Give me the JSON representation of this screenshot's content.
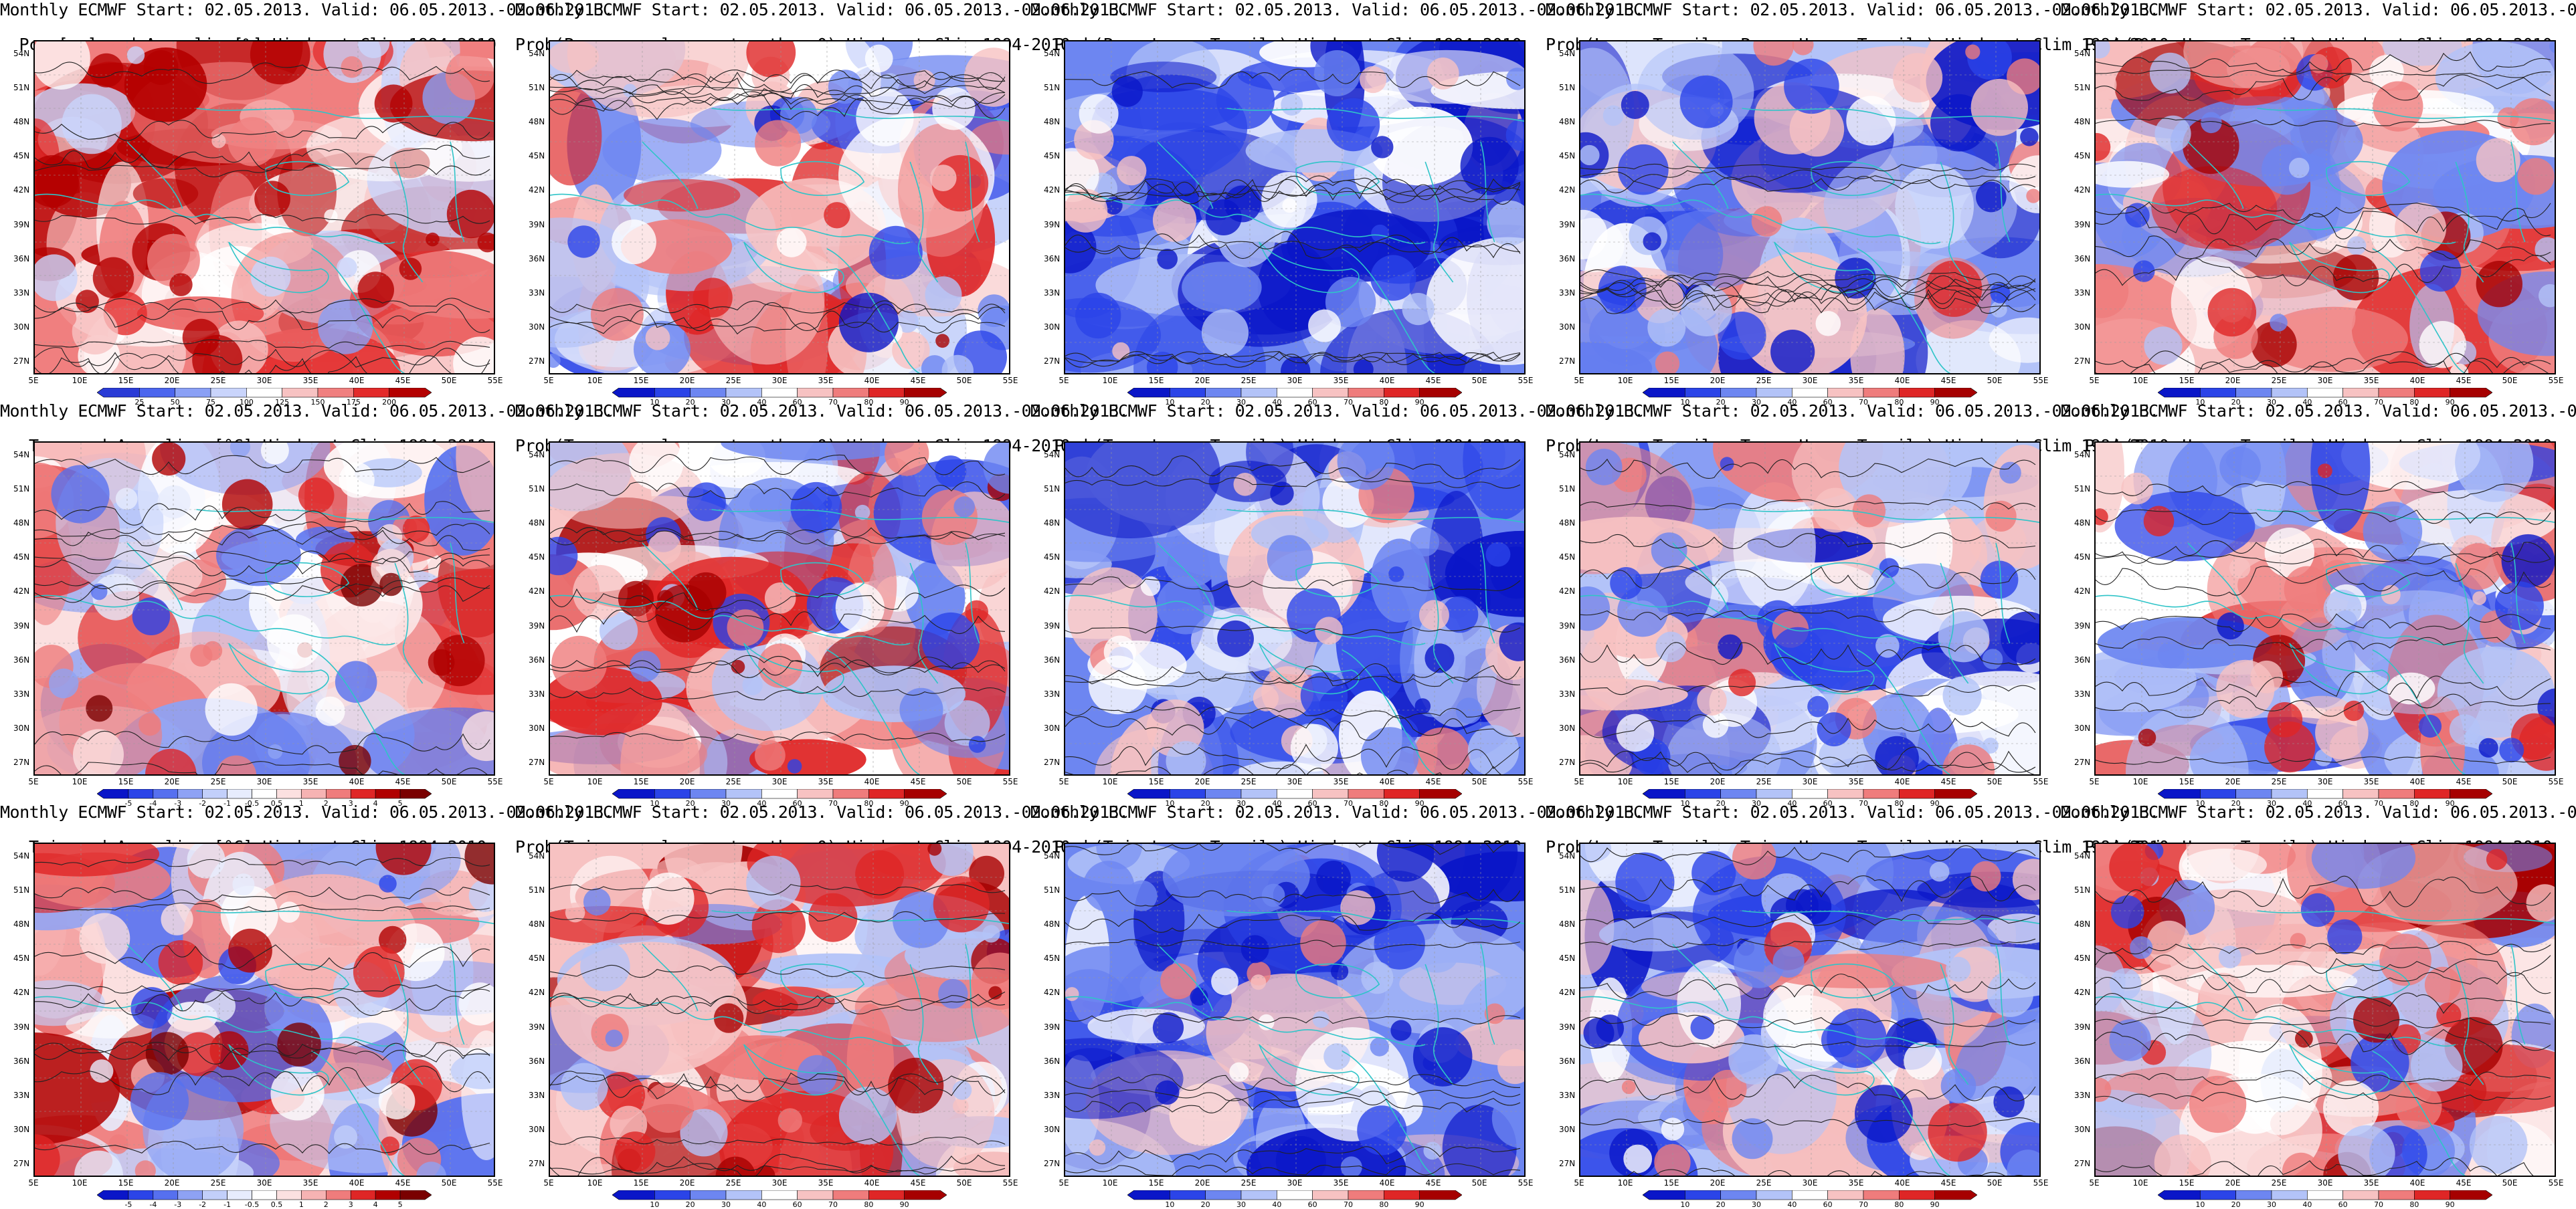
{
  "page": {
    "header_line": "Monthly ECMWF Start: 02.05.2013. Valid: 06.05.2013.-02.06.2013."
  },
  "axes": {
    "lat_labels": [
      "54N",
      "51N",
      "48N",
      "45N",
      "42N",
      "39N",
      "36N",
      "33N",
      "30N",
      "27N"
    ],
    "lon_labels": [
      "5E",
      "10E",
      "15E",
      "20E",
      "25E",
      "30E",
      "35E",
      "40E",
      "45E",
      "50E",
      "55E"
    ]
  },
  "colorbars": {
    "pcpn_anom": {
      "labels": [
        "25",
        "50",
        "75",
        "100",
        "125",
        "150",
        "175",
        "200"
      ],
      "colors": [
        "#2a3bd6",
        "#4c66ee",
        "#8aa0f5",
        "#c9d4fb",
        "#ffffff",
        "#f7c2c2",
        "#f07f7f",
        "#e32a2a",
        "#b40000"
      ]
    },
    "prob": {
      "labels": [
        "10",
        "20",
        "30",
        "40",
        "60",
        "70",
        "80",
        "90"
      ],
      "colors": [
        "#0a16c8",
        "#2b44e8",
        "#6d86f1",
        "#b3c3f8",
        "#ffffff",
        "#f7c2c2",
        "#ef7c7c",
        "#df2626",
        "#a60000"
      ]
    },
    "temp_anom": {
      "labels": [
        "-5",
        "-4",
        "-3",
        "-2",
        "-1",
        "-0.5",
        "0.5",
        "1",
        "2",
        "3",
        "4",
        "5"
      ],
      "colors": [
        "#0a16c8",
        "#2b44e8",
        "#5670ef",
        "#8ea2f4",
        "#c2cffa",
        "#e7ecfd",
        "#ffffff",
        "#fbe0e0",
        "#f6b3b3",
        "#ef7c7c",
        "#df2626",
        "#b00000",
        "#7a0000"
      ]
    }
  },
  "panels": [
    {
      "title2": "Pcpn[mm] and Anomalies[%]",
      "title3": "Hindcast Clim 1994-2010",
      "colorbar": "pcpn_anom",
      "field": 0.55
    },
    {
      "title2": "Prob(Pcpn anomaly greater then 0)",
      "title3": "Hindcast Clim 1994-2010",
      "colorbar": "prob",
      "field": 0.05
    },
    {
      "title2": "Prob(Pcpn<Lower Tercile)",
      "title3": "Hindcast Clim 1994-2010",
      "colorbar": "prob",
      "field": -0.55
    },
    {
      "title2": "Prob(Lower Tercile<=Pcpn<=Upper Tercile)",
      "title3": "Hindcast Clim 1994-2010",
      "colorbar": "prob",
      "field": -0.25
    },
    {
      "title2": "Prob(Pcpn>Upper Tercile)",
      "title3": "Hindcast Clim 1994-2010",
      "colorbar": "prob",
      "field": 0.15
    },
    {
      "title2": "Tmax and Anomalies [°C]",
      "title3": "Hindcast Clim 1994-2010",
      "colorbar": "temp_anom",
      "field": 0.1
    },
    {
      "title2": "Prob(Tmax anomaly greater then 0)",
      "title3": "Hindcast Clim 1994-2010",
      "colorbar": "prob",
      "field": 0.1
    },
    {
      "title2": "Prob(Tmax<Lower Tercile)",
      "title3": "Hindcast Clim 1994-2010",
      "colorbar": "prob",
      "field": -0.4
    },
    {
      "title2": "Prob(Lower Tercile<=Tmax<=Upper Tercile)",
      "title3": "Hindcast Clim 1994-2010",
      "colorbar": "prob",
      "field": -0.2
    },
    {
      "title2": "Prob(Tmax>Upper Tercile)",
      "title3": "Hindcast Clim 1994-2010",
      "colorbar": "prob",
      "field": 0.0
    },
    {
      "title2": "Tmin and Anomalies [°C]",
      "title3": "Hindcast Clim 1994-2010",
      "colorbar": "temp_anom",
      "field": 0.12
    },
    {
      "title2": "Prob(Tmin anomaly greater then 0)",
      "title3": "Hindcast Clim 1994-2010",
      "colorbar": "prob",
      "field": 0.35
    },
    {
      "title2": "Prob(Tmin<Lower Tercile)",
      "title3": "Hindcast Clim 1994-2010",
      "colorbar": "prob",
      "field": -0.5
    },
    {
      "title2": "Prob(Lower Tercile<=Tmin<=Upper Tercile)",
      "title3": "Hindcast Clim 1994-2010",
      "colorbar": "prob",
      "field": -0.25
    },
    {
      "title2": "Prob(Tmin>Upper Tercile)",
      "title3": "Hindcast Clim 1994-2010",
      "colorbar": "prob",
      "field": 0.2
    }
  ]
}
